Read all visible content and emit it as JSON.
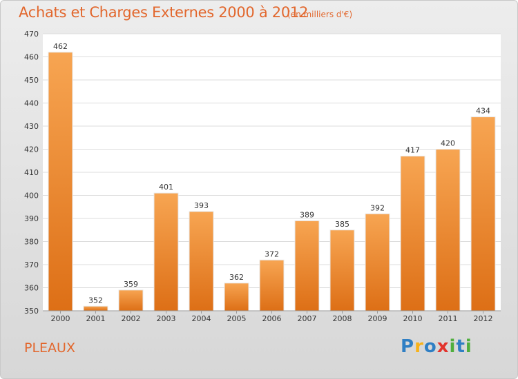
{
  "title": "Achats et Charges Externes 2000 à 2012",
  "unit": "(en milliers d'€)",
  "place": "PLEAUX",
  "logo": {
    "letters": [
      "P",
      "r",
      "o",
      "x",
      "i",
      "t",
      "i"
    ],
    "colors": [
      "#2f7fc4",
      "#f7b21b",
      "#2f7fc4",
      "#e2342d",
      "#4fae3d",
      "#2f7fc4",
      "#4fae3d"
    ]
  },
  "colors": {
    "bar": "#f0862f",
    "accent": "#e2672d"
  },
  "chart_data": {
    "type": "bar",
    "title": "Achats et Charges Externes 2000 à 2012",
    "subtitle": "(en milliers d'€)",
    "xlabel": "",
    "ylabel": "",
    "categories": [
      "2000",
      "2001",
      "2002",
      "2003",
      "2004",
      "2005",
      "2006",
      "2007",
      "2008",
      "2009",
      "2010",
      "2011",
      "2012"
    ],
    "values": [
      462,
      352,
      359,
      401,
      393,
      362,
      372,
      389,
      385,
      392,
      417,
      420,
      434
    ],
    "ylim": [
      350,
      470
    ],
    "yticks": [
      350,
      360,
      370,
      380,
      390,
      400,
      410,
      420,
      430,
      440,
      450,
      460,
      470
    ],
    "grid": true,
    "legend": "none"
  }
}
